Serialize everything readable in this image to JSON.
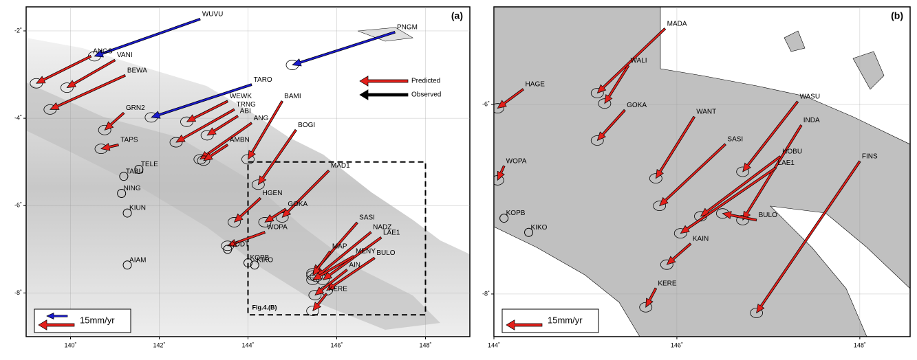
{
  "panels": [
    {
      "label": "(a)",
      "xlim": [
        139,
        149
      ],
      "ylim": [
        -9,
        -1.45
      ],
      "xticks": [
        {
          "value": 140,
          "label": "140˚"
        },
        {
          "value": 142,
          "label": "142˚"
        },
        {
          "value": 144,
          "label": "144˚"
        },
        {
          "value": 146,
          "label": "146˚"
        },
        {
          "value": 148,
          "label": "148˚"
        }
      ],
      "yticks": [
        {
          "value": -2,
          "label": "-2˚"
        },
        {
          "value": -4,
          "label": "-4˚"
        },
        {
          "value": -6,
          "label": "-6˚"
        },
        {
          "value": -8,
          "label": "-8˚"
        }
      ],
      "legend": [
        {
          "name": "Predicted",
          "color": "#e3201b"
        },
        {
          "name": "Observed",
          "color": "#000000"
        }
      ],
      "scale": "15mm/yr",
      "inset": {
        "label": "Fig.4.(B)",
        "lon": [
          144,
          148
        ],
        "lat": [
          -8.5,
          -5
        ]
      },
      "stations": [
        {
          "name": "WUVU",
          "lon": 142.92,
          "lat": -1.73,
          "tip_lon": 140.54,
          "tip_lat": -2.58,
          "color": "#1a1acc"
        },
        {
          "name": "PNGM",
          "lon": 147.31,
          "lat": -2.03,
          "tip_lon": 145.0,
          "tip_lat": -2.78,
          "color": "#1a1acc"
        },
        {
          "name": "TARO",
          "lon": 144.08,
          "lat": -3.23,
          "tip_lon": 141.82,
          "tip_lat": -3.98,
          "color": "#1a1acc"
        },
        {
          "name": "ANGS",
          "lon": 140.46,
          "lat": -2.58,
          "tip_lon": 139.23,
          "tip_lat": -3.2,
          "color": "#e3201b"
        },
        {
          "name": "VANI",
          "lon": 141.0,
          "lat": -2.67,
          "tip_lon": 139.92,
          "tip_lat": -3.3,
          "color": "#e3201b"
        },
        {
          "name": "BEWA",
          "lon": 141.23,
          "lat": -3.02,
          "tip_lon": 139.54,
          "tip_lat": -3.8,
          "color": "#e3201b"
        },
        {
          "name": "GRN2",
          "lon": 141.2,
          "lat": -3.88,
          "tip_lon": 140.77,
          "tip_lat": -4.27,
          "color": "#e3201b"
        },
        {
          "name": "TAPS",
          "lon": 141.08,
          "lat": -4.61,
          "tip_lon": 140.69,
          "tip_lat": -4.7,
          "color": "#e3201b"
        },
        {
          "name": "TABU",
          "lon": 141.2,
          "lat": -5.33
        },
        {
          "name": "TELE",
          "lon": 141.54,
          "lat": -5.17
        },
        {
          "name": "NING",
          "lon": 141.15,
          "lat": -5.72
        },
        {
          "name": "KIUN",
          "lon": 141.28,
          "lat": -6.17
        },
        {
          "name": "AIAM",
          "lon": 141.28,
          "lat": -7.36
        },
        {
          "name": "WEWK",
          "lon": 143.54,
          "lat": -3.61,
          "tip_lon": 142.62,
          "tip_lat": -4.08,
          "color": "#e3201b"
        },
        {
          "name": "TRNG",
          "lon": 143.69,
          "lat": -3.8,
          "tip_lon": 142.38,
          "tip_lat": -4.55,
          "color": "#e3201b"
        },
        {
          "name": "ABI",
          "lon": 143.77,
          "lat": -3.95,
          "tip_lon": 143.08,
          "tip_lat": -4.39,
          "color": "#e3201b"
        },
        {
          "name": "ANG",
          "lon": 144.08,
          "lat": -4.11,
          "tip_lon": 142.92,
          "tip_lat": -4.94,
          "color": "#e3201b"
        },
        {
          "name": "AMBN",
          "lon": 143.54,
          "lat": -4.61,
          "tip_lon": 143.0,
          "tip_lat": -4.97,
          "color": "#e3201b"
        },
        {
          "name": "BAMI",
          "lon": 144.77,
          "lat": -3.61,
          "tip_lon": 144.0,
          "tip_lat": -4.94,
          "color": "#e3201b"
        },
        {
          "name": "BOGI",
          "lon": 145.08,
          "lat": -4.27,
          "tip_lon": 144.23,
          "tip_lat": -5.52,
          "color": "#e3201b"
        },
        {
          "name": "MAD1",
          "lon": 145.82,
          "lat": -5.2,
          "tip_lon": 144.77,
          "tip_lat": -6.27,
          "color": "#e3201b"
        },
        {
          "name": "HGEN",
          "lon": 144.28,
          "lat": -5.83,
          "tip_lon": 143.69,
          "tip_lat": -6.38,
          "color": "#e3201b"
        },
        {
          "name": "GOKA",
          "lon": 144.85,
          "lat": -6.08,
          "tip_lon": 144.38,
          "tip_lat": -6.38,
          "color": "#e3201b"
        },
        {
          "name": "WOPA",
          "lon": 144.38,
          "lat": -6.61,
          "tip_lon": 143.54,
          "tip_lat": -6.92,
          "color": "#e3201b"
        },
        {
          "name": "ODDT",
          "lon": 143.54,
          "lat": -7.0
        },
        {
          "name": "KOPB",
          "lon": 144.0,
          "lat": -7.31
        },
        {
          "name": "KIKO",
          "lon": 144.15,
          "lat": -7.36
        },
        {
          "name": "SASI",
          "lon": 146.46,
          "lat": -6.39,
          "tip_lon": 145.46,
          "tip_lat": -7.55,
          "color": "#e3201b"
        },
        {
          "name": "NADZ",
          "lon": 146.77,
          "lat": -6.61,
          "tip_lon": 145.54,
          "tip_lat": -7.63,
          "color": "#e3201b"
        },
        {
          "name": "LAE1",
          "lon": 147.0,
          "lat": -6.73,
          "tip_lon": 145.69,
          "tip_lat": -7.7,
          "color": "#e3201b"
        },
        {
          "name": "MAP",
          "lon": 145.85,
          "lat": -7.05,
          "tip_lon": 145.46,
          "tip_lat": -7.6,
          "color": "#e3201b"
        },
        {
          "name": "MENY",
          "lon": 146.38,
          "lat": -7.16,
          "tip_lon": 145.46,
          "tip_lat": -7.7,
          "color": "#e3201b"
        },
        {
          "name": "BULO",
          "lon": 146.85,
          "lat": -7.2,
          "tip_lon": 145.77,
          "tip_lat": -7.94,
          "color": "#e3201b"
        },
        {
          "name": "AIN",
          "lon": 146.23,
          "lat": -7.47,
          "tip_lon": 145.51,
          "tip_lat": -8.05,
          "color": "#e3201b"
        },
        {
          "name": "KERE",
          "lon": 145.77,
          "lat": -8.02,
          "tip_lon": 145.46,
          "tip_lat": -8.41,
          "color": "#e3201b"
        }
      ]
    },
    {
      "label": "(b)",
      "xlim": [
        144,
        148.55
      ],
      "ylim": [
        -8.45,
        -4.97
      ],
      "xticks": [
        {
          "value": 144,
          "label": "144˚"
        },
        {
          "value": 146,
          "label": "146˚"
        },
        {
          "value": 148,
          "label": "148˚"
        }
      ],
      "yticks": [
        {
          "value": -6,
          "label": "-6˚"
        },
        {
          "value": -8,
          "label": "-8˚"
        }
      ],
      "scale": "15mm/yr",
      "stations": [
        {
          "name": "MADA",
          "lon": 145.87,
          "lat": -5.2,
          "tip_lon": 145.13,
          "tip_lat": -5.88,
          "color": "#e3201b"
        },
        {
          "name": "WALI",
          "lon": 145.47,
          "lat": -5.59,
          "tip_lon": 145.21,
          "tip_lat": -5.99,
          "color": "#e3201b"
        },
        {
          "name": "HAGE",
          "lon": 144.32,
          "lat": -5.84,
          "tip_lon": 144.04,
          "tip_lat": -6.04,
          "color": "#e3201b"
        },
        {
          "name": "GOKA",
          "lon": 145.43,
          "lat": -6.06,
          "tip_lon": 145.13,
          "tip_lat": -6.38,
          "color": "#e3201b"
        },
        {
          "name": "WANT",
          "lon": 146.19,
          "lat": -6.13,
          "tip_lon": 145.77,
          "tip_lat": -6.78,
          "color": "#e3201b"
        },
        {
          "name": "SASI",
          "lon": 146.53,
          "lat": -6.42,
          "tip_lon": 145.81,
          "tip_lat": -7.07,
          "color": "#e3201b"
        },
        {
          "name": "WASU",
          "lon": 147.32,
          "lat": -5.97,
          "tip_lon": 146.72,
          "tip_lat": -6.71,
          "color": "#e3201b"
        },
        {
          "name": "INDA",
          "lon": 147.36,
          "lat": -6.22,
          "tip_lon": 146.72,
          "tip_lat": -7.22,
          "color": "#e3201b"
        },
        {
          "name": "HOBU",
          "lon": 147.13,
          "lat": -6.55,
          "tip_lon": 146.26,
          "tip_lat": -7.18,
          "color": "#e3201b"
        },
        {
          "name": "LAE1",
          "lon": 147.08,
          "lat": -6.67,
          "tip_lon": 146.04,
          "tip_lat": -7.36,
          "color": "#e3201b"
        },
        {
          "name": "FINS",
          "lon": 148.0,
          "lat": -6.6,
          "tip_lon": 146.87,
          "tip_lat": -8.2,
          "color": "#e3201b"
        },
        {
          "name": "BULO",
          "lon": 146.87,
          "lat": -7.22,
          "tip_lon": 146.5,
          "tip_lat": -7.15,
          "color": "#e3201b"
        },
        {
          "name": "KAIN",
          "lon": 146.15,
          "lat": -7.47,
          "tip_lon": 145.89,
          "tip_lat": -7.69,
          "color": "#e3201b"
        },
        {
          "name": "KERE",
          "lon": 145.77,
          "lat": -7.94,
          "tip_lon": 145.66,
          "tip_lat": -8.14,
          "color": "#e3201b"
        },
        {
          "name": "WOPA",
          "lon": 144.11,
          "lat": -6.65,
          "tip_lon": 144.04,
          "tip_lat": -6.8,
          "color": "#e3201b"
        },
        {
          "name": "KOPB",
          "lon": 144.11,
          "lat": -7.2
        },
        {
          "name": "KIKO",
          "lon": 144.38,
          "lat": -7.35
        }
      ]
    }
  ]
}
